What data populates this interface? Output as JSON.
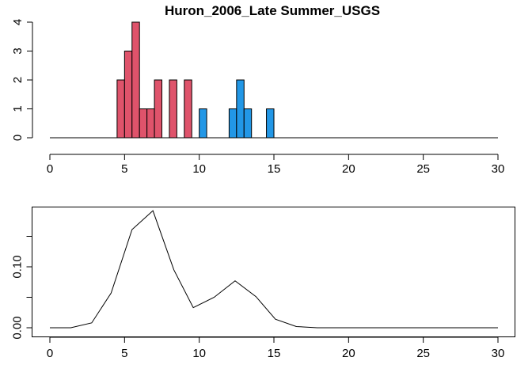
{
  "chart_data": [
    {
      "type": "bar",
      "title": "Huron_2006_Late Summer_USGS",
      "xlabel": "",
      "ylabel": "",
      "xlim": [
        0,
        30
      ],
      "ylim": [
        0,
        4
      ],
      "xticks": [
        0,
        5,
        10,
        15,
        20,
        25,
        30
      ],
      "yticks": [
        0,
        1,
        2,
        3,
        4
      ],
      "bin_width": 0.5,
      "grid": false,
      "colors": {
        "group1": "#DF536B",
        "group2": "#2297E6",
        "edge": "#000000"
      },
      "series": [
        {
          "bins": [
            {
              "x0": 4.5,
              "x1": 5.0,
              "count": 2
            },
            {
              "x0": 5.0,
              "x1": 5.5,
              "count": 3
            },
            {
              "x0": 5.5,
              "x1": 6.0,
              "count": 4
            },
            {
              "x0": 6.0,
              "x1": 6.5,
              "count": 1
            },
            {
              "x0": 6.5,
              "x1": 7.0,
              "count": 1
            },
            {
              "x0": 7.0,
              "x1": 7.5,
              "count": 2
            },
            {
              "x0": 8.0,
              "x1": 8.5,
              "count": 2
            },
            {
              "x0": 9.0,
              "x1": 9.5,
              "count": 2
            }
          ],
          "color": "#DF536B"
        },
        {
          "bins": [
            {
              "x0": 10.0,
              "x1": 10.5,
              "count": 1
            },
            {
              "x0": 12.0,
              "x1": 12.5,
              "count": 1
            },
            {
              "x0": 12.5,
              "x1": 13.0,
              "count": 2
            },
            {
              "x0": 13.0,
              "x1": 13.5,
              "count": 1
            },
            {
              "x0": 14.5,
              "x1": 15.0,
              "count": 1
            }
          ],
          "color": "#2297E6"
        }
      ]
    },
    {
      "type": "line",
      "title": "",
      "xlabel": "",
      "ylabel": "",
      "xlim": [
        0,
        30
      ],
      "ylim": [
        0,
        0.18
      ],
      "xticks": [
        0,
        5,
        10,
        15,
        20,
        25,
        30
      ],
      "yticks": [
        0.0,
        0.05,
        0.1,
        0.15
      ],
      "ytick_labels": [
        "0.00",
        "",
        "0.10",
        ""
      ],
      "grid": false,
      "series": [
        {
          "x": [
            0,
            1.4,
            2.8,
            4.1,
            5.5,
            6.9,
            8.3,
            9.6,
            11.0,
            12.4,
            13.8,
            15.1,
            16.5,
            17.9,
            30
          ],
          "y": [
            0,
            0,
            0.008,
            0.057,
            0.161,
            0.192,
            0.095,
            0.033,
            0.05,
            0.077,
            0.051,
            0.014,
            0.002,
            0,
            0
          ],
          "color": "#000000"
        }
      ]
    }
  ]
}
